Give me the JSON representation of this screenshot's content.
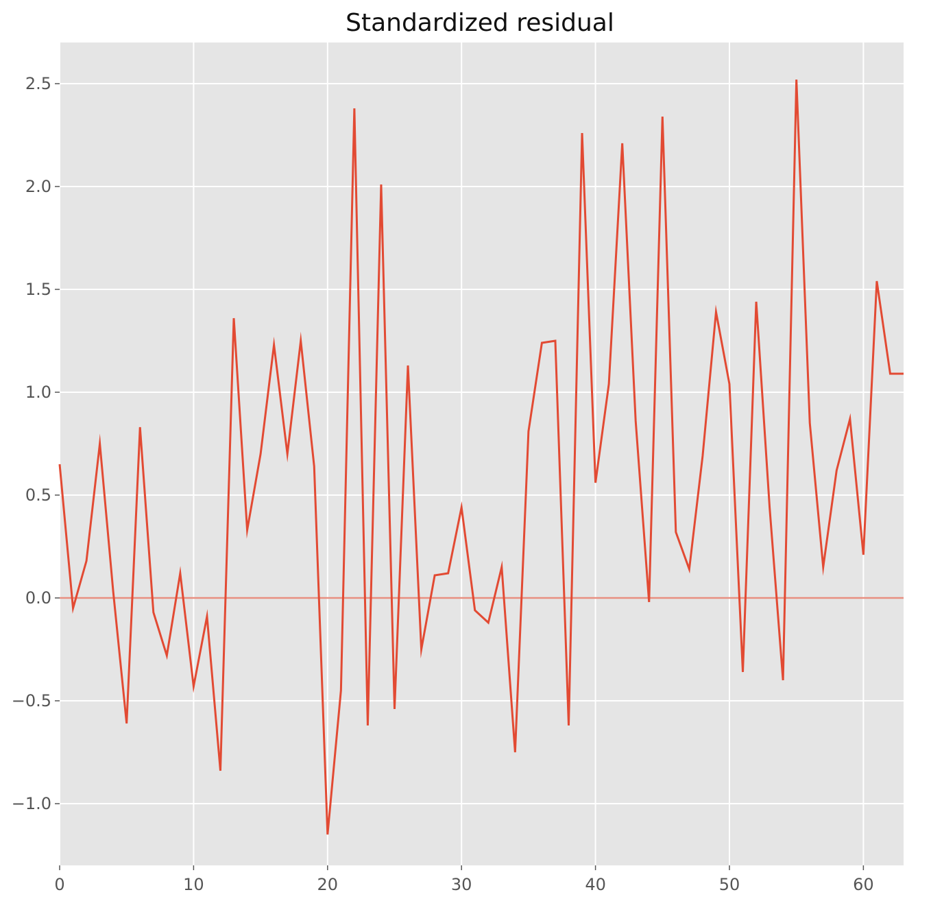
{
  "chart_data": {
    "type": "line",
    "title": "Standardized residual",
    "xlabel": "",
    "ylabel": "",
    "xlim": [
      0,
      63
    ],
    "ylim": [
      -1.3,
      2.7
    ],
    "xticks": [
      0,
      10,
      20,
      30,
      40,
      50,
      60
    ],
    "yticks": [
      -1.0,
      -0.5,
      0.0,
      0.5,
      1.0,
      1.5,
      2.0,
      2.5
    ],
    "xtick_labels": [
      "0",
      "10",
      "20",
      "30",
      "40",
      "50",
      "60"
    ],
    "ytick_labels": [
      "−1.0",
      "−0.5",
      "0.0",
      "0.5",
      "1.0",
      "1.5",
      "2.0",
      "2.5"
    ],
    "grid": true,
    "reference_line": {
      "y": 0.0
    },
    "series": [
      {
        "x": [
          0,
          1,
          2,
          3,
          4,
          5,
          6,
          7,
          8,
          9,
          10,
          11,
          12,
          13,
          14,
          15,
          16,
          17,
          18,
          19,
          20,
          21,
          22,
          23,
          24,
          25,
          26,
          27,
          28,
          29,
          30,
          31,
          32,
          33,
          34,
          35,
          36,
          37,
          38,
          39,
          40,
          41,
          42,
          43,
          44,
          45,
          46,
          47,
          48,
          49,
          50,
          51,
          52,
          53,
          54,
          55,
          56,
          57,
          58,
          59,
          60,
          61,
          62,
          63
        ],
        "values": [
          0.65,
          -0.05,
          0.18,
          0.75,
          0.03,
          -0.61,
          0.83,
          -0.07,
          -0.28,
          0.12,
          -0.43,
          -0.09,
          -0.84,
          1.36,
          0.33,
          0.7,
          1.23,
          0.7,
          1.25,
          0.64,
          -1.15,
          -0.45,
          2.38,
          -0.62,
          2.01,
          -0.54,
          1.13,
          -0.25,
          0.11,
          0.12,
          0.44,
          -0.06,
          -0.12,
          0.15,
          -0.75,
          0.81,
          1.24,
          1.25,
          -0.62,
          2.26,
          0.56,
          1.04,
          2.21,
          0.86,
          -0.02,
          2.34,
          0.32,
          0.14,
          0.69,
          1.39,
          1.04,
          -0.36,
          1.44,
          0.44,
          -0.4,
          2.52,
          0.85,
          0.15,
          0.62,
          0.87,
          0.21,
          1.54,
          1.09,
          1.09
        ]
      }
    ],
    "colors": {
      "background": "#e5e5e5",
      "grid": "#ffffff",
      "line": "#e24a33",
      "reference_line": "#e88f80",
      "tick_text": "#555555",
      "title_text": "#111111"
    }
  }
}
